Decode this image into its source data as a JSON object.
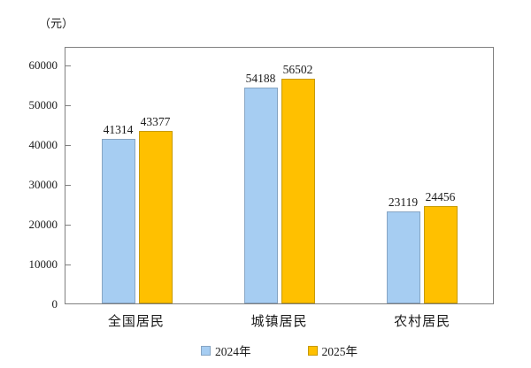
{
  "chart_data": {
    "type": "bar",
    "title": "",
    "unit_label": "（元）",
    "categories": [
      "全国居民",
      "城镇居民",
      "农村居民"
    ],
    "series": [
      {
        "name": "2024年",
        "values": [
          41314,
          54188,
          23119
        ],
        "fill": "#A6CDF2",
        "border": "#87A5C3"
      },
      {
        "name": "2025年",
        "values": [
          43377,
          56502,
          24456
        ],
        "fill": "#FFC000",
        "border": "#C79A00"
      }
    ],
    "yticks": [
      0,
      10000,
      20000,
      30000,
      40000,
      50000,
      60000
    ],
    "ylim": [
      0,
      64444
    ],
    "xlabel": "",
    "ylabel": "",
    "grid": false,
    "legend_position": "bottom-center",
    "axis_color": "#808080",
    "text_color": "#1a1a1a"
  }
}
